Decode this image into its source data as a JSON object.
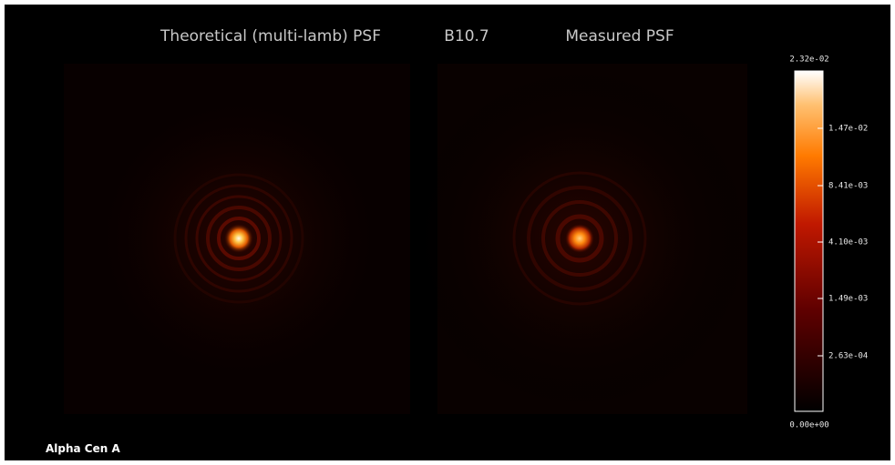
{
  "header": {
    "left_title": "Theoretical (multi-lamb) PSF",
    "band": "B10.7",
    "right_title": "Measured PSF"
  },
  "colorbar": {
    "max_label": "2.32e-02",
    "ticks": [
      "1.47e-02",
      "8.41e-03",
      "4.10e-03",
      "1.49e-03",
      "2.63e-04"
    ],
    "min_label": "0.00e+00"
  },
  "caption": "Alpha Cen A"
}
